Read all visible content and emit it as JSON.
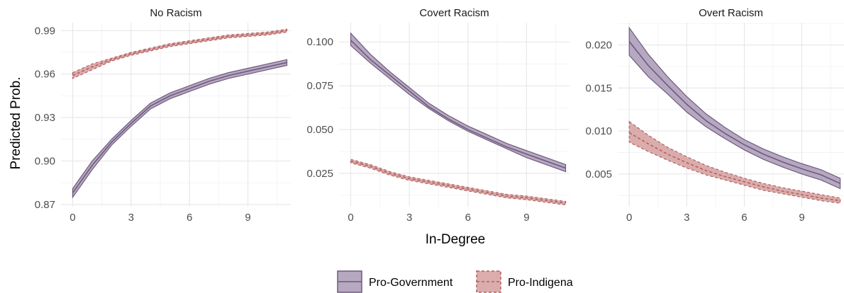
{
  "chart_data": {
    "type": "line",
    "xlabel": "In-Degree",
    "ylabel": "Predicted Prob.",
    "legend": {
      "position": "bottom",
      "entries": [
        {
          "name": "Pro-Government",
          "line_color": "#6e5a7e",
          "fill_color": "#a999b5",
          "line_style": "solid"
        },
        {
          "name": "Pro-Indigena",
          "line_color": "#b35f5f",
          "fill_color": "#d49f9d",
          "line_style": "dashed"
        }
      ]
    },
    "grid": true,
    "panels": [
      {
        "title": "No Racism",
        "xlim": [
          -0.6,
          11.2
        ],
        "ylim": [
          0.8685,
          0.9955
        ],
        "xticks": [
          "0",
          "3",
          "6",
          "9"
        ],
        "xtick_values": [
          0,
          3,
          6,
          9
        ],
        "yticks": [
          "0.87",
          "0.90",
          "0.93",
          "0.96",
          "0.99"
        ],
        "ytick_values": [
          0.87,
          0.9,
          0.93,
          0.96,
          0.99
        ],
        "series": [
          {
            "name": "Pro-Government",
            "x": [
              0,
              1,
              2,
              3,
              4,
              5,
              6,
              7,
              8,
              9,
              10,
              11
            ],
            "y": [
              0.878,
              0.897,
              0.913,
              0.926,
              0.938,
              0.945,
              0.95,
              0.955,
              0.959,
              0.962,
              0.965,
              0.968
            ],
            "lower": [
              0.875,
              0.894,
              0.911,
              0.924,
              0.936,
              0.943,
              0.948,
              0.953,
              0.957,
              0.96,
              0.963,
              0.966
            ],
            "upper": [
              0.881,
              0.9,
              0.915,
              0.928,
              0.94,
              0.947,
              0.952,
              0.957,
              0.961,
              0.964,
              0.967,
              0.97
            ]
          },
          {
            "name": "Pro-Indigena",
            "x": [
              0,
              1,
              2,
              3,
              4,
              5,
              6,
              7,
              8,
              9,
              10,
              11
            ],
            "y": [
              0.959,
              0.965,
              0.97,
              0.974,
              0.977,
              0.98,
              0.982,
              0.984,
              0.986,
              0.987,
              0.988,
              0.99
            ],
            "lower": [
              0.957,
              0.963,
              0.969,
              0.973,
              0.976,
              0.979,
              0.981,
              0.983,
              0.985,
              0.986,
              0.987,
              0.989
            ],
            "upper": [
              0.961,
              0.967,
              0.971,
              0.975,
              0.978,
              0.981,
              0.983,
              0.985,
              0.987,
              0.988,
              0.989,
              0.991
            ]
          }
        ]
      },
      {
        "title": "Covert Racism",
        "xlim": [
          -0.6,
          11.2
        ],
        "ylim": [
          0.006,
          0.111
        ],
        "xticks": [
          "0",
          "3",
          "6",
          "9"
        ],
        "xtick_values": [
          0,
          3,
          6,
          9
        ],
        "yticks": [
          "0.025",
          "0.050",
          "0.075",
          "0.100"
        ],
        "ytick_values": [
          0.025,
          0.05,
          0.075,
          0.1
        ],
        "series": [
          {
            "name": "Pro-Government",
            "x": [
              0,
              1,
              2,
              3,
              4,
              5,
              6,
              7,
              8,
              9,
              10,
              11
            ],
            "y": [
              0.101,
              0.09,
              0.081,
              0.072,
              0.063,
              0.056,
              0.05,
              0.045,
              0.04,
              0.036,
              0.032,
              0.028
            ],
            "lower": [
              0.098,
              0.088,
              0.079,
              0.07,
              0.062,
              0.055,
              0.049,
              0.044,
              0.039,
              0.034,
              0.03,
              0.026
            ],
            "upper": [
              0.105,
              0.093,
              0.083,
              0.074,
              0.065,
              0.058,
              0.052,
              0.047,
              0.042,
              0.038,
              0.034,
              0.03
            ]
          },
          {
            "name": "Pro-Indigena",
            "x": [
              0,
              1,
              2,
              3,
              4,
              5,
              6,
              7,
              8,
              9,
              10,
              11
            ],
            "y": [
              0.032,
              0.029,
              0.025,
              0.022,
              0.02,
              0.018,
              0.016,
              0.014,
              0.012,
              0.011,
              0.0095,
              0.008
            ],
            "lower": [
              0.031,
              0.028,
              0.024,
              0.021,
              0.019,
              0.017,
              0.015,
              0.013,
              0.011,
              0.01,
              0.0085,
              0.007
            ],
            "upper": [
              0.033,
              0.03,
              0.026,
              0.023,
              0.021,
              0.019,
              0.017,
              0.015,
              0.013,
              0.012,
              0.0105,
              0.009
            ]
          }
        ]
      },
      {
        "title": "Overt Racism",
        "xlim": [
          -0.6,
          11.2
        ],
        "ylim": [
          0.0012,
          0.0226
        ],
        "xticks": [
          "0",
          "3",
          "6",
          "9"
        ],
        "xtick_values": [
          0,
          3,
          6,
          9
        ],
        "yticks": [
          "0.005",
          "0.010",
          "0.015",
          "0.020"
        ],
        "ytick_values": [
          0.005,
          0.01,
          0.015,
          0.02
        ],
        "series": [
          {
            "name": "Pro-Government",
            "x": [
              0,
              1,
              2,
              3,
              4,
              5,
              6,
              7,
              8,
              9,
              10,
              11
            ],
            "y": [
              0.0204,
              0.0176,
              0.0153,
              0.0131,
              0.0112,
              0.0097,
              0.0084,
              0.0073,
              0.0064,
              0.0056,
              0.0049,
              0.0039
            ],
            "lower": [
              0.0188,
              0.0163,
              0.0143,
              0.0122,
              0.0105,
              0.0091,
              0.0078,
              0.0067,
              0.0058,
              0.005,
              0.0043,
              0.0033
            ],
            "upper": [
              0.022,
              0.0189,
              0.0163,
              0.014,
              0.012,
              0.0104,
              0.009,
              0.0079,
              0.007,
              0.0062,
              0.0055,
              0.0045
            ]
          },
          {
            "name": "Pro-Indigena",
            "x": [
              0,
              1,
              2,
              3,
              4,
              5,
              6,
              7,
              8,
              9,
              10,
              11
            ],
            "y": [
              0.0098,
              0.0085,
              0.0073,
              0.0063,
              0.0054,
              0.0047,
              0.0041,
              0.0035,
              0.003,
              0.0026,
              0.0022,
              0.0019
            ],
            "lower": [
              0.0087,
              0.0076,
              0.0066,
              0.0057,
              0.0049,
              0.0043,
              0.0037,
              0.0031,
              0.0027,
              0.0023,
              0.0019,
              0.0016
            ],
            "upper": [
              0.0111,
              0.0095,
              0.0081,
              0.007,
              0.006,
              0.0052,
              0.0045,
              0.0039,
              0.0034,
              0.003,
              0.0026,
              0.0022
            ]
          }
        ]
      }
    ]
  }
}
